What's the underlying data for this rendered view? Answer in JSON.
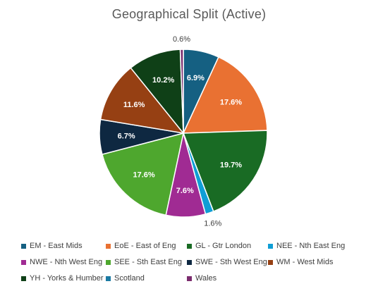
{
  "chart_data": {
    "type": "pie",
    "title": "Geographical Split (Active)",
    "slices": [
      {
        "label": "EM - East Mids",
        "value": 6.9,
        "display": "6.9%",
        "color": "#156082"
      },
      {
        "label": "EoE - East of Eng",
        "value": 17.6,
        "display": "17.6%",
        "color": "#E97132"
      },
      {
        "label": "GL - Gtr London",
        "value": 19.7,
        "display": "19.7%",
        "color": "#196B24"
      },
      {
        "label": "NEE - Nth East Eng",
        "value": 1.6,
        "display": "1.6%",
        "color": "#0F9ED5"
      },
      {
        "label": "NWE - Nth West Eng",
        "value": 7.6,
        "display": "7.6%",
        "color": "#A02B93"
      },
      {
        "label": "SEE - Sth East Eng",
        "value": 17.6,
        "display": "17.6%",
        "color": "#4EA72E"
      },
      {
        "label": "SWE - Sth West Eng",
        "value": 6.7,
        "display": "6.7%",
        "color": "#0E2841"
      },
      {
        "label": "WM - West Mids",
        "value": 11.6,
        "display": "11.6%",
        "color": "#964013"
      },
      {
        "label": "YH - Yorks & Humber",
        "value": 10.2,
        "display": "10.2%",
        "color": "#0F4017"
      },
      {
        "label": "Scotland",
        "value": 0.0,
        "display": "",
        "color": "#1B7AA3"
      },
      {
        "label": "Wales",
        "value": 0.6,
        "display": "0.6%",
        "color": "#7B2C6E"
      }
    ],
    "legend_position": "bottom"
  }
}
